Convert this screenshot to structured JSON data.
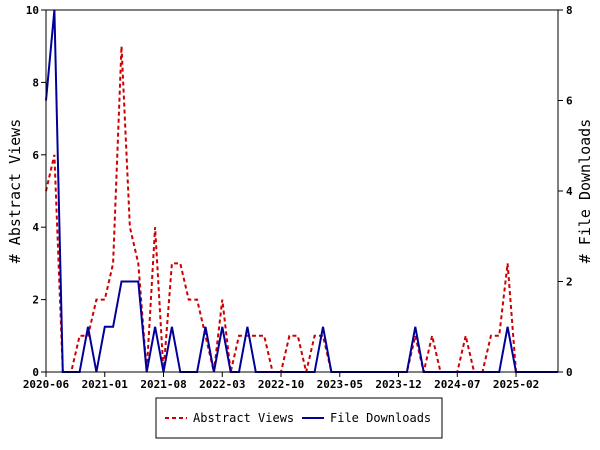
{
  "chart_data": {
    "type": "line",
    "x_tick_labels": [
      "2020-06",
      "2021-01",
      "2021-08",
      "2022-03",
      "2022-10",
      "2023-05",
      "2023-12",
      "2024-07",
      "2025-02"
    ],
    "x_tick_positions": [
      0,
      7,
      14,
      21,
      28,
      35,
      42,
      49,
      56
    ],
    "x_range": [
      0,
      61
    ],
    "ylabel_left": "# Abstract Views",
    "ylabel_right": "# File Downloads",
    "ylim_left": [
      0,
      10
    ],
    "ylim_right": [
      0,
      8
    ],
    "yticks_left": [
      "0",
      "2",
      "4",
      "6",
      "8",
      "10"
    ],
    "yticks_right": [
      "0",
      "2",
      "4",
      "6",
      "8"
    ],
    "grid": false,
    "legend_position": "bottom-center",
    "series": [
      {
        "name": "Abstract Views",
        "axis": "left",
        "color": "#cc0000",
        "style": "dashed",
        "x": [
          0,
          1,
          2,
          3,
          4,
          5,
          6,
          7,
          8,
          9,
          10,
          11,
          12,
          13,
          14,
          15,
          16,
          17,
          18,
          19,
          20,
          21,
          22,
          23,
          24,
          25,
          26,
          27,
          28,
          29,
          30,
          31,
          32,
          33,
          34,
          35,
          36,
          37,
          38,
          39,
          40,
          41,
          42,
          43,
          44,
          45,
          46,
          47,
          48,
          49,
          50,
          51,
          52,
          53,
          54,
          55,
          56,
          57,
          58,
          59,
          60,
          61
        ],
        "values": [
          5,
          6,
          0,
          0,
          1,
          1,
          2,
          2,
          3,
          9,
          4,
          3,
          0,
          4,
          0,
          3,
          3,
          2,
          2,
          1,
          0,
          2,
          0,
          1,
          1,
          1,
          1,
          0,
          0,
          1,
          1,
          0,
          1,
          1,
          0,
          0,
          0,
          0,
          0,
          0,
          0,
          0,
          0,
          0,
          1,
          0,
          1,
          0,
          0,
          0,
          1,
          0,
          0,
          1,
          1,
          3,
          0,
          0,
          0,
          0,
          0,
          0
        ]
      },
      {
        "name": "File Downloads",
        "axis": "right",
        "color": "#000099",
        "style": "solid",
        "x": [
          0,
          1,
          2,
          3,
          4,
          5,
          6,
          7,
          8,
          9,
          10,
          11,
          12,
          13,
          14,
          15,
          16,
          17,
          18,
          19,
          20,
          21,
          22,
          23,
          24,
          25,
          26,
          27,
          28,
          29,
          30,
          31,
          32,
          33,
          34,
          35,
          36,
          37,
          38,
          39,
          40,
          41,
          42,
          43,
          44,
          45,
          46,
          47,
          48,
          49,
          50,
          51,
          52,
          53,
          54,
          55,
          56,
          57,
          58,
          59,
          60,
          61
        ],
        "values": [
          6,
          8,
          0,
          0,
          0,
          1,
          0,
          1,
          1,
          2,
          2,
          2,
          0,
          1,
          0,
          1,
          0,
          0,
          0,
          1,
          0,
          1,
          0,
          0,
          1,
          0,
          0,
          0,
          0,
          0,
          0,
          0,
          0,
          1,
          0,
          0,
          0,
          0,
          0,
          0,
          0,
          0,
          0,
          0,
          1,
          0,
          0,
          0,
          0,
          0,
          0,
          0,
          0,
          0,
          0,
          1,
          0,
          0,
          0,
          0,
          0,
          0
        ]
      }
    ]
  }
}
